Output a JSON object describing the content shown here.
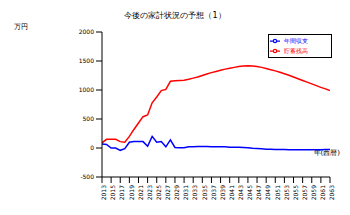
{
  "chart_data": {
    "type": "line",
    "title": "今後の家計状況の予想（1）",
    "y_label": "万円",
    "x_label": "年(西暦)",
    "x": [
      2013,
      2014,
      2015,
      2016,
      2017,
      2018,
      2019,
      2020,
      2021,
      2022,
      2023,
      2024,
      2025,
      2026,
      2027,
      2028,
      2029,
      2030,
      2031,
      2032,
      2033,
      2034,
      2035,
      2036,
      2037,
      2038,
      2039,
      2040,
      2041,
      2042,
      2043,
      2044,
      2045,
      2046,
      2047,
      2048,
      2049,
      2050,
      2051,
      2052,
      2053,
      2054,
      2055,
      2056,
      2057,
      2058,
      2059,
      2060,
      2061,
      2062,
      2063
    ],
    "series": [
      {
        "name": "貯蓄残高",
        "color": "#ff0000",
        "values": [
          90,
          150,
          150,
          150,
          110,
          100,
          200,
          320,
          430,
          540,
          570,
          780,
          880,
          990,
          1010,
          1150,
          1160,
          1165,
          1170,
          1185,
          1205,
          1225,
          1250,
          1275,
          1300,
          1320,
          1340,
          1360,
          1375,
          1390,
          1405,
          1415,
          1420,
          1415,
          1405,
          1390,
          1370,
          1350,
          1330,
          1305,
          1280,
          1255,
          1225,
          1195,
          1165,
          1135,
          1105,
          1075,
          1045,
          1020,
          990
        ]
      },
      {
        "name": "年間収支",
        "color": "#0000ff",
        "values": [
          70,
          60,
          0,
          0,
          -40,
          -10,
          100,
          110,
          110,
          110,
          30,
          200,
          100,
          110,
          20,
          140,
          10,
          5,
          5,
          20,
          20,
          25,
          25,
          25,
          20,
          20,
          20,
          20,
          15,
          15,
          15,
          10,
          5,
          -5,
          -10,
          -15,
          -20,
          -20,
          -25,
          -25,
          -25,
          -30,
          -30,
          -30,
          -30,
          -30,
          -30,
          -30,
          -30,
          -25,
          -25
        ]
      }
    ],
    "xlim": [
      2013,
      2063
    ],
    "xticks": [
      2013,
      2015,
      2017,
      2019,
      2021,
      2023,
      2025,
      2027,
      2029,
      2031,
      2033,
      2035,
      2037,
      2039,
      2041,
      2043,
      2045,
      2047,
      2049,
      2051,
      2053,
      2055,
      2057,
      2059,
      2061,
      2063
    ],
    "ylim": [
      -500,
      2000
    ],
    "yticks": [
      -500,
      0,
      500,
      1000,
      1500,
      2000
    ],
    "grid": false,
    "legend": "upper left"
  }
}
